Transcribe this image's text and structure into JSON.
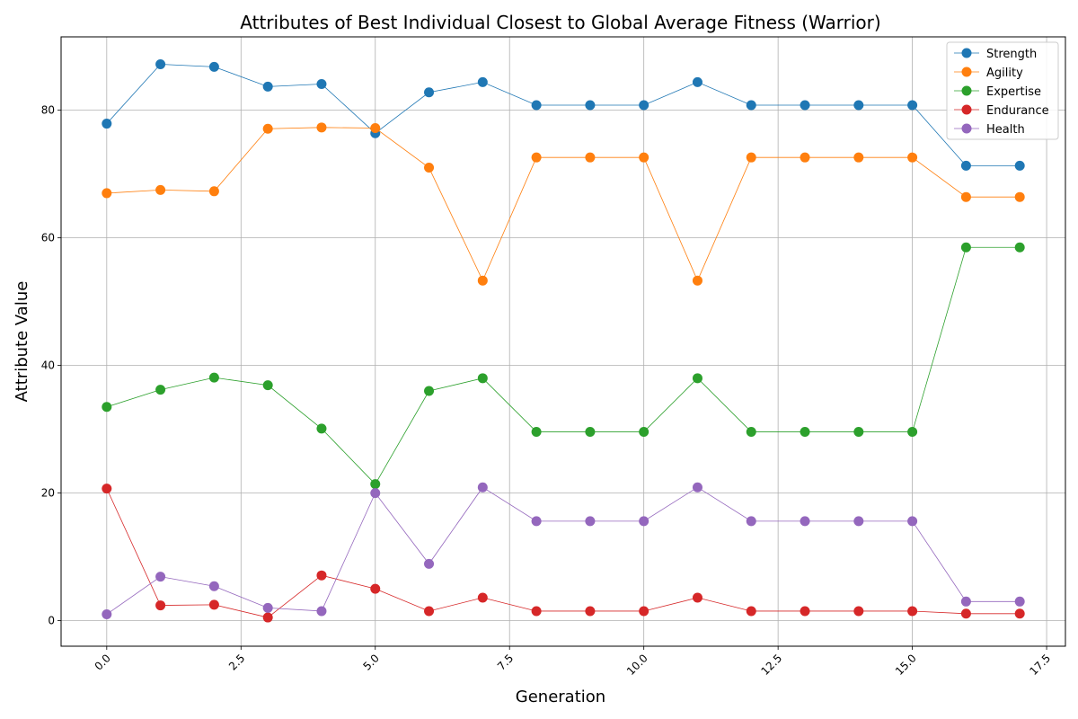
{
  "chart_data": {
    "type": "line",
    "title": "Attributes of Best Individual Closest to Global Average Fitness (Warrior)",
    "xlabel": "Generation",
    "ylabel": "Attribute Value",
    "xlim": [
      -0.85,
      17.85
    ],
    "ylim": [
      -4,
      91.5
    ],
    "xticks": [
      0.0,
      2.5,
      5.0,
      7.5,
      10.0,
      12.5,
      15.0,
      17.5
    ],
    "xtick_labels": [
      "0.0",
      "2.5",
      "5.0",
      "7.5",
      "10.0",
      "12.5",
      "15.0",
      "17.5"
    ],
    "yticks": [
      0,
      20,
      40,
      60,
      80
    ],
    "ytick_labels": [
      "0",
      "20",
      "40",
      "60",
      "80"
    ],
    "grid": true,
    "legend_position": "top-right",
    "x": [
      0,
      1,
      2,
      3,
      4,
      5,
      6,
      7,
      8,
      9,
      10,
      11,
      12,
      13,
      14,
      15,
      16,
      17
    ],
    "series": [
      {
        "name": "Strength",
        "color": "#1f77b4",
        "values": [
          77.9,
          87.2,
          86.8,
          83.7,
          84.1,
          76.4,
          82.8,
          84.4,
          80.8,
          80.8,
          80.8,
          84.4,
          80.8,
          80.8,
          80.8,
          80.8,
          71.3,
          71.3
        ]
      },
      {
        "name": "Agility",
        "color": "#ff7f0e",
        "values": [
          67.0,
          67.5,
          67.3,
          77.1,
          77.3,
          77.2,
          71.0,
          53.3,
          72.6,
          72.6,
          72.6,
          53.3,
          72.6,
          72.6,
          72.6,
          72.6,
          66.4,
          66.4
        ]
      },
      {
        "name": "Expertise",
        "color": "#2ca02c",
        "values": [
          33.5,
          36.2,
          38.1,
          36.9,
          30.1,
          21.4,
          36.0,
          38.0,
          29.6,
          29.6,
          29.6,
          38.0,
          29.6,
          29.6,
          29.6,
          29.6,
          58.5,
          58.5
        ]
      },
      {
        "name": "Endurance",
        "color": "#d62728",
        "values": [
          20.7,
          2.4,
          2.5,
          0.5,
          7.1,
          5.0,
          1.5,
          3.6,
          1.5,
          1.5,
          1.5,
          3.6,
          1.5,
          1.5,
          1.5,
          1.5,
          1.1,
          1.1
        ]
      },
      {
        "name": "Health",
        "color": "#9467bd",
        "values": [
          1.0,
          6.9,
          5.4,
          2.0,
          1.5,
          20.0,
          8.9,
          20.9,
          15.6,
          15.6,
          15.6,
          20.9,
          15.6,
          15.6,
          15.6,
          15.6,
          3.0,
          3.0
        ]
      }
    ]
  }
}
